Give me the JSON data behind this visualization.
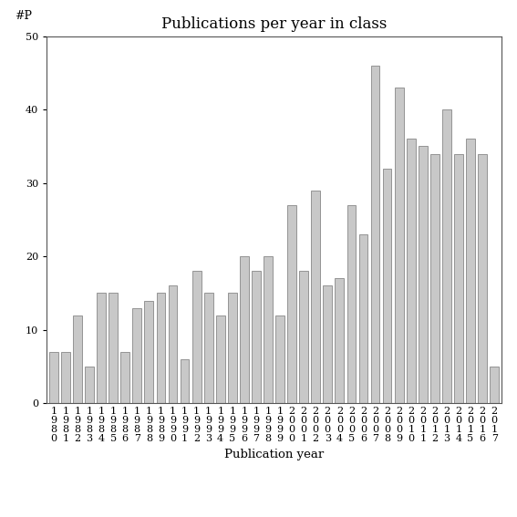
{
  "title": "Publications per year in class",
  "xlabel": "Publication year",
  "ylabel": "#P",
  "years": [
    "1980",
    "1981",
    "1982",
    "1983",
    "1984",
    "1985",
    "1986",
    "1987",
    "1988",
    "1989",
    "1990",
    "1991",
    "1992",
    "1993",
    "1994",
    "1995",
    "1996",
    "1997",
    "1998",
    "1999",
    "2000",
    "2001",
    "2002",
    "2003",
    "2004",
    "2005",
    "2006",
    "2007",
    "2008",
    "2009",
    "2010",
    "2011",
    "2012",
    "2013",
    "2014",
    "2015",
    "2016",
    "2017"
  ],
  "values": [
    7,
    7,
    12,
    5,
    15,
    15,
    7,
    13,
    14,
    15,
    16,
    6,
    18,
    15,
    12,
    15,
    20,
    18,
    20,
    12,
    27,
    18,
    29,
    16,
    17,
    27,
    23,
    46,
    32,
    43,
    36,
    35,
    34,
    40,
    34,
    36,
    34,
    5
  ],
  "bar_color": "#c8c8c8",
  "bar_edgecolor": "#888888",
  "ylim": [
    0,
    50
  ],
  "yticks": [
    0,
    10,
    20,
    30,
    40,
    50
  ],
  "bg_color": "#ffffff",
  "title_fontsize": 12,
  "label_fontsize": 9.5,
  "tick_fontsize": 8,
  "ylabel_fontsize": 9
}
